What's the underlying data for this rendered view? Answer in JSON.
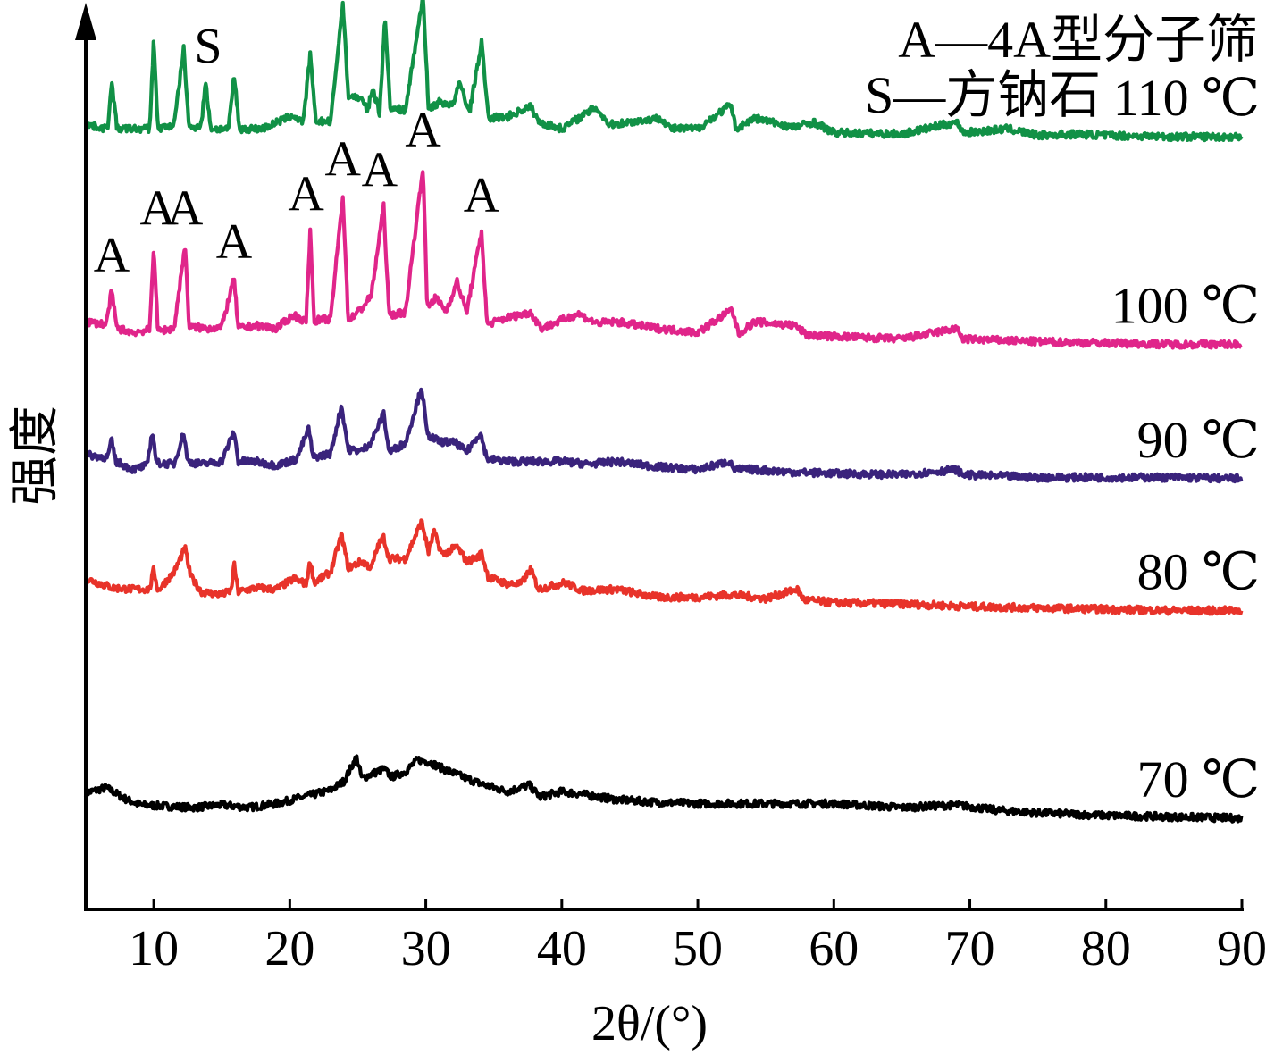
{
  "chart_data": {
    "type": "line",
    "xlabel": "2θ/(°)",
    "ylabel": "强度",
    "xlim": [
      5,
      90
    ],
    "x_ticks": [
      10,
      20,
      30,
      40,
      50,
      60,
      70,
      80,
      90
    ],
    "y_ticks": false,
    "grid": false,
    "legend_position": "top-right",
    "legend": [
      {
        "key": "A",
        "text": "A—4A型分子筛"
      },
      {
        "key": "S",
        "text": "S—方钠石"
      }
    ],
    "y_note": "arbitrary intensity units; curves vertically offset",
    "series": [
      {
        "name": "70 ℃",
        "color": "#000000",
        "baseline": 0,
        "points": [
          [
            5,
            1.1
          ],
          [
            6.5,
            1.5
          ],
          [
            8,
            0.6
          ],
          [
            9,
            0.2
          ],
          [
            11,
            0.1
          ],
          [
            13,
            0
          ],
          [
            15,
            0.2
          ],
          [
            17,
            0
          ],
          [
            19,
            0.3
          ],
          [
            21,
            0.8
          ],
          [
            23,
            1.3
          ],
          [
            24,
            2
          ],
          [
            24.9,
            3.8
          ],
          [
            25.3,
            2.2
          ],
          [
            26,
            2.5
          ],
          [
            26.9,
            2.9
          ],
          [
            27.5,
            2.3
          ],
          [
            28.5,
            2.7
          ],
          [
            29.4,
            3.6
          ],
          [
            30.3,
            3.4
          ],
          [
            31.3,
            2.9
          ],
          [
            32.5,
            2.4
          ],
          [
            34,
            1.8
          ],
          [
            36,
            1.2
          ],
          [
            37.6,
            1.7
          ],
          [
            38.4,
            0.8
          ],
          [
            40,
            1.2
          ],
          [
            41.5,
            1
          ],
          [
            44,
            0.6
          ],
          [
            47,
            0.4
          ],
          [
            50,
            0.3
          ],
          [
            55,
            0.3
          ],
          [
            60,
            0.3
          ],
          [
            65,
            0
          ],
          [
            69,
            0.2
          ],
          [
            72,
            -0.2
          ],
          [
            75,
            -0.4
          ],
          [
            80,
            -0.6
          ],
          [
            85,
            -0.7
          ],
          [
            90,
            -0.8
          ]
        ],
        "peaks": [],
        "labels": []
      },
      {
        "name": "80 ℃",
        "color": "#e8332a",
        "baseline": 16,
        "points": [
          [
            5,
            1.2
          ],
          [
            7,
            0.5
          ],
          [
            8.5,
            0.4
          ],
          [
            9.7,
            0.4
          ],
          [
            10,
            1.9
          ],
          [
            10.3,
            0.3
          ],
          [
            11.5,
            1.7
          ],
          [
            12.3,
            3.5
          ],
          [
            12.7,
            1.4
          ],
          [
            13.5,
            0.2
          ],
          [
            15,
            0
          ],
          [
            15.7,
            0.3
          ],
          [
            15.9,
            2.3
          ],
          [
            16.2,
            0.2
          ],
          [
            17.5,
            0.5
          ],
          [
            19,
            0.4
          ],
          [
            20.3,
            1.2
          ],
          [
            21.2,
            0.8
          ],
          [
            21.5,
            2.5
          ],
          [
            21.8,
            0.9
          ],
          [
            23,
            1.7
          ],
          [
            23.8,
            4.5
          ],
          [
            24.3,
            2
          ],
          [
            25.3,
            2.5
          ],
          [
            26,
            2
          ],
          [
            26.5,
            3.7
          ],
          [
            26.9,
            4.3
          ],
          [
            27.3,
            2.7
          ],
          [
            28.5,
            2.7
          ],
          [
            29.7,
            5.5
          ],
          [
            30.2,
            3.2
          ],
          [
            30.6,
            4.7
          ],
          [
            31.2,
            3
          ],
          [
            32.3,
            3.6
          ],
          [
            33,
            2.5
          ],
          [
            33.8,
            2.8
          ],
          [
            34.1,
            3.1
          ],
          [
            34.6,
            1.3
          ],
          [
            36,
            0.8
          ],
          [
            37,
            0.8
          ],
          [
            37.7,
            1.9
          ],
          [
            38.3,
            0.4
          ],
          [
            40.2,
            0.9
          ],
          [
            41.5,
            0.3
          ],
          [
            44,
            0.4
          ],
          [
            47,
            -0.2
          ],
          [
            50,
            -0.2
          ],
          [
            52.5,
            0
          ],
          [
            55,
            -0.3
          ],
          [
            57.3,
            0.4
          ],
          [
            57.8,
            -0.4
          ],
          [
            60,
            -0.6
          ],
          [
            65,
            -0.7
          ],
          [
            70,
            -0.9
          ],
          [
            75,
            -1
          ],
          [
            80,
            -1.1
          ],
          [
            85,
            -1.2
          ],
          [
            90,
            -1.2
          ]
        ],
        "peaks": [],
        "labels": []
      },
      {
        "name": "90 ℃",
        "color": "#3a237c",
        "baseline": 26,
        "points": [
          [
            5,
            0.5
          ],
          [
            6.6,
            0.3
          ],
          [
            6.9,
            1.6
          ],
          [
            7.2,
            0
          ],
          [
            8.5,
            -0.6
          ],
          [
            9.5,
            -0.3
          ],
          [
            9.9,
            2.3
          ],
          [
            10.2,
            -0.1
          ],
          [
            11.5,
            -0.2
          ],
          [
            12.2,
            2.2
          ],
          [
            12.5,
            0
          ],
          [
            13.5,
            -0.2
          ],
          [
            15,
            0
          ],
          [
            15.9,
            2.3
          ],
          [
            16.2,
            0
          ],
          [
            17.5,
            0
          ],
          [
            19,
            -0.3
          ],
          [
            20.5,
            0.2
          ],
          [
            21.4,
            2.5
          ],
          [
            21.7,
            0.3
          ],
          [
            23,
            0.6
          ],
          [
            23.8,
            4.2
          ],
          [
            24.3,
            0.9
          ],
          [
            25.3,
            0.8
          ],
          [
            26,
            1.5
          ],
          [
            26.9,
            3.6
          ],
          [
            27.3,
            0.7
          ],
          [
            28.5,
            1.4
          ],
          [
            29.7,
            5.6
          ],
          [
            30.1,
            2
          ],
          [
            31,
            1.5
          ],
          [
            32.2,
            1.4
          ],
          [
            33,
            0.7
          ],
          [
            34,
            2.2
          ],
          [
            34.5,
            0.2
          ],
          [
            36,
            0
          ],
          [
            38,
            0
          ],
          [
            40,
            0
          ],
          [
            42,
            -0.2
          ],
          [
            44,
            0
          ],
          [
            47,
            -0.4
          ],
          [
            50,
            -0.6
          ],
          [
            52.3,
            0
          ],
          [
            52.7,
            -0.6
          ],
          [
            54,
            -0.6
          ],
          [
            57,
            -0.8
          ],
          [
            60,
            -0.9
          ],
          [
            65,
            -1
          ],
          [
            69,
            -0.6
          ],
          [
            69.5,
            -1
          ],
          [
            75,
            -1.2
          ],
          [
            80,
            -1.2
          ],
          [
            85,
            -1.2
          ],
          [
            90,
            -1.3
          ]
        ],
        "peaks": [],
        "labels": []
      },
      {
        "name": "100 ℃",
        "color": "#e0258a",
        "baseline": 36,
        "points": [
          [
            5,
            0.5
          ],
          [
            6.5,
            0.3
          ],
          [
            6.9,
            2.8
          ],
          [
            7.3,
            0
          ],
          [
            8.5,
            -0.3
          ],
          [
            9.7,
            -0.1
          ],
          [
            10,
            6.3
          ],
          [
            10.3,
            -0.2
          ],
          [
            11.5,
            0
          ],
          [
            12.3,
            6.3
          ],
          [
            12.6,
            0.1
          ],
          [
            14,
            0
          ],
          [
            15,
            0.1
          ],
          [
            15.9,
            3.8
          ],
          [
            16.2,
            0
          ],
          [
            17.5,
            0.2
          ],
          [
            19,
            0
          ],
          [
            20.3,
            1
          ],
          [
            21.2,
            0.5
          ],
          [
            21.5,
            7.4
          ],
          [
            21.8,
            0.6
          ],
          [
            23,
            0.7
          ],
          [
            23.9,
            10
          ],
          [
            24.3,
            0.6
          ],
          [
            25.3,
            1.5
          ],
          [
            26,
            2.5
          ],
          [
            26.9,
            9.2
          ],
          [
            27.3,
            1
          ],
          [
            28.5,
            1.2
          ],
          [
            29.8,
            12.2
          ],
          [
            30.1,
            1.6
          ],
          [
            30.7,
            2.3
          ],
          [
            31.5,
            1.3
          ],
          [
            32.3,
            3.5
          ],
          [
            33,
            1.2
          ],
          [
            34.1,
            7.3
          ],
          [
            34.5,
            0.3
          ],
          [
            36,
            0.8
          ],
          [
            37.7,
            1.2
          ],
          [
            38.5,
            0
          ],
          [
            41.2,
            1.1
          ],
          [
            42.5,
            0.4
          ],
          [
            44,
            0.5
          ],
          [
            47,
            0
          ],
          [
            50,
            -0.3
          ],
          [
            52.5,
            1.4
          ],
          [
            53,
            -0.4
          ],
          [
            54.2,
            0.5
          ],
          [
            57.2,
            0.2
          ],
          [
            58,
            -0.5
          ],
          [
            60,
            -0.6
          ],
          [
            65,
            -0.8
          ],
          [
            69,
            0
          ],
          [
            69.5,
            -0.8
          ],
          [
            75,
            -1
          ],
          [
            80,
            -1.1
          ],
          [
            85,
            -1.2
          ],
          [
            90,
            -1.2
          ]
        ],
        "peaks": [
          {
            "x": 6.9,
            "y": 2.8,
            "label": "A"
          },
          {
            "x": 10.0,
            "y": 6.3,
            "label": "A"
          },
          {
            "x": 12.3,
            "y": 6.3,
            "label": "A"
          },
          {
            "x": 15.9,
            "y": 3.8,
            "label": "A"
          },
          {
            "x": 21.5,
            "y": 7.4,
            "label": "A"
          },
          {
            "x": 23.9,
            "y": 10.0,
            "label": "A"
          },
          {
            "x": 26.9,
            "y": 9.2,
            "label": "A"
          },
          {
            "x": 29.8,
            "y": 12.2,
            "label": "A"
          },
          {
            "x": 34.1,
            "y": 7.3,
            "label": "A"
          }
        ],
        "labels": [
          {
            "text": "A",
            "x": 6.9
          },
          {
            "text": "A",
            "x": 10.3
          },
          {
            "text": "A",
            "x": 12.3
          },
          {
            "text": "A",
            "x": 15.9
          },
          {
            "text": "A",
            "x": 21.2
          },
          {
            "text": "A",
            "x": 23.9
          },
          {
            "text": "A",
            "x": 26.6
          },
          {
            "text": "A",
            "x": 29.8
          },
          {
            "text": "A",
            "x": 34.1
          }
        ]
      },
      {
        "name": "110 ℃",
        "color": "#119146",
        "baseline": 51,
        "points": [
          [
            5,
            0.3
          ],
          [
            6.6,
            0
          ],
          [
            6.9,
            3.6
          ],
          [
            7.3,
            0
          ],
          [
            8.5,
            0
          ],
          [
            9.7,
            0
          ],
          [
            10,
            6.8
          ],
          [
            10.3,
            0
          ],
          [
            11.5,
            0.3
          ],
          [
            12.2,
            6
          ],
          [
            12.6,
            0
          ],
          [
            13.5,
            0.3
          ],
          [
            13.8,
            3.5
          ],
          [
            14.2,
            0
          ],
          [
            15.5,
            0
          ],
          [
            15.9,
            4
          ],
          [
            16.3,
            0
          ],
          [
            18,
            0
          ],
          [
            20.2,
            1
          ],
          [
            21,
            0.5
          ],
          [
            21.5,
            5.6
          ],
          [
            21.9,
            0.6
          ],
          [
            23,
            0.5
          ],
          [
            23.9,
            9.5
          ],
          [
            24.3,
            2.5
          ],
          [
            25.2,
            2.3
          ],
          [
            25.7,
            1.4
          ],
          [
            26.1,
            3
          ],
          [
            26.6,
            1.2
          ],
          [
            27,
            8.3
          ],
          [
            27.4,
            1.5
          ],
          [
            28.5,
            1.4
          ],
          [
            29.8,
            10
          ],
          [
            30.2,
            1.5
          ],
          [
            31,
            2
          ],
          [
            32,
            1.8
          ],
          [
            32.5,
            3.5
          ],
          [
            33.2,
            1.2
          ],
          [
            34.1,
            6.5
          ],
          [
            34.6,
            0.8
          ],
          [
            36,
            0.9
          ],
          [
            37.7,
            1.7
          ],
          [
            38.3,
            0.5
          ],
          [
            40,
            0
          ],
          [
            42.5,
            1.6
          ],
          [
            43.5,
            0.3
          ],
          [
            47.3,
            0.8
          ],
          [
            48,
            0
          ],
          [
            50,
            0
          ],
          [
            52.4,
            1.8
          ],
          [
            52.8,
            0
          ],
          [
            54.2,
            0.8
          ],
          [
            57,
            0.1
          ],
          [
            58.5,
            0.5
          ],
          [
            60,
            -0.3
          ],
          [
            65,
            -0.4
          ],
          [
            69,
            0.5
          ],
          [
            69.6,
            -0.3
          ],
          [
            72.8,
            0
          ],
          [
            75,
            -0.5
          ],
          [
            78,
            -0.4
          ],
          [
            80,
            -0.5
          ],
          [
            85,
            -0.6
          ],
          [
            90,
            -0.6
          ]
        ],
        "peaks": [
          {
            "x": 13.8,
            "y": 3.5,
            "label": "S"
          }
        ],
        "labels": [
          {
            "text": "S",
            "x": 14.0
          }
        ]
      }
    ]
  }
}
